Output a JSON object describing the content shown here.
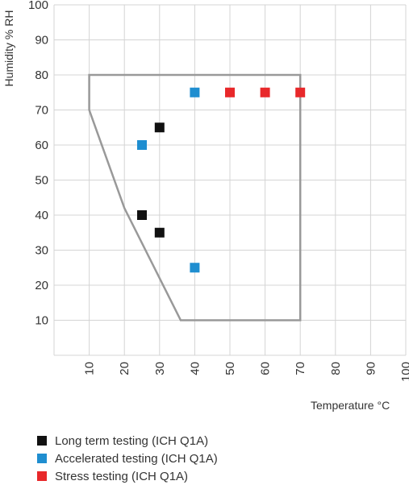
{
  "chart_data": {
    "type": "scatter",
    "title": "",
    "xlabel": "Temperature °C",
    "ylabel": "Humidity % RH",
    "xlim": [
      0,
      100
    ],
    "ylim": [
      0,
      100
    ],
    "x_ticks": [
      10,
      20,
      30,
      40,
      50,
      60,
      70,
      80,
      90,
      100
    ],
    "y_ticks": [
      10,
      20,
      30,
      40,
      50,
      60,
      70,
      80,
      90,
      100
    ],
    "grid": true,
    "legend_position": "bottom-left",
    "envelope": [
      [
        10,
        80
      ],
      [
        70,
        80
      ],
      [
        70,
        10
      ],
      [
        36,
        10
      ],
      [
        20,
        42
      ],
      [
        10,
        70
      ]
    ],
    "envelope_color": "#999999",
    "series": [
      {
        "name": "Long term testing (ICH Q1A)",
        "color": "#111111",
        "x": [
          30,
          25,
          30
        ],
        "y": [
          65,
          40,
          35
        ]
      },
      {
        "name": "Accelerated testing (ICH Q1A)",
        "color": "#1f8ed0",
        "x": [
          40,
          25,
          40
        ],
        "y": [
          75,
          60,
          25
        ]
      },
      {
        "name": "Stress testing (ICH Q1A)",
        "color": "#e8282a",
        "x": [
          50,
          60,
          70
        ],
        "y": [
          75,
          75,
          75
        ]
      }
    ]
  }
}
